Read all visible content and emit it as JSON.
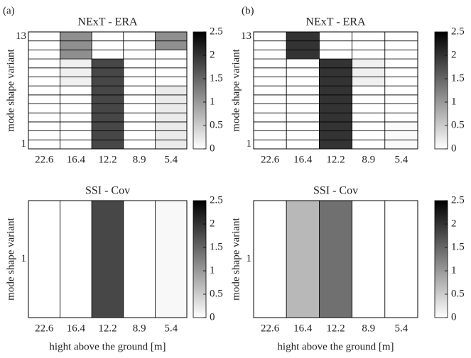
{
  "panel_labels": [
    "(a)",
    "(b)"
  ],
  "chart_data": [
    {
      "type": "heatmap",
      "title": "NExT - ERA",
      "ylabel": "mode shape variant",
      "x_categories": [
        "22.6",
        "16.4",
        "12.2",
        "8.9",
        "5.4"
      ],
      "y_categories": [
        "1",
        null,
        null,
        null,
        null,
        null,
        null,
        null,
        null,
        null,
        null,
        null,
        "13"
      ],
      "values": [
        [
          0,
          0,
          1.8,
          0,
          0.2
        ],
        [
          0,
          0,
          1.8,
          0,
          0.2
        ],
        [
          0,
          0,
          1.8,
          0,
          0.2
        ],
        [
          0,
          0,
          1.8,
          0,
          0.2
        ],
        [
          0,
          0,
          1.8,
          0,
          0.2
        ],
        [
          0,
          0,
          1.8,
          0,
          0.2
        ],
        [
          0,
          0,
          1.8,
          0,
          0.2
        ],
        [
          0,
          0.15,
          1.8,
          0,
          0
        ],
        [
          0,
          0.15,
          1.8,
          0,
          0
        ],
        [
          0,
          0.15,
          1.8,
          0,
          0
        ],
        [
          0,
          1.1,
          0,
          0,
          0
        ],
        [
          0,
          1.1,
          0,
          0,
          1.1
        ],
        [
          0,
          1.1,
          0,
          0,
          1.1
        ]
      ],
      "clim": [
        0,
        2.5
      ],
      "cticks": [
        0,
        0.5,
        1,
        1.5,
        2,
        2.5
      ],
      "colormap": [
        "#ffffff",
        "#000000"
      ]
    },
    {
      "type": "heatmap",
      "title": "NExT - ERA",
      "ylabel": "mode shape variant",
      "x_categories": [
        "22.6",
        "16.4",
        "12.2",
        "8.9",
        "5.4"
      ],
      "y_categories": [
        "1",
        null,
        null,
        null,
        null,
        null,
        null,
        null,
        null,
        null,
        null,
        null,
        "13"
      ],
      "values": [
        [
          0,
          0,
          2.0,
          0,
          0.05
        ],
        [
          0,
          0,
          2.0,
          0,
          0.05
        ],
        [
          0,
          0,
          2.0,
          0,
          0.05
        ],
        [
          0,
          0,
          2.0,
          0,
          0
        ],
        [
          0,
          0,
          2.0,
          0,
          0
        ],
        [
          0,
          0,
          2.0,
          0,
          0
        ],
        [
          0,
          0,
          2.0,
          0,
          0
        ],
        [
          0,
          0,
          2.0,
          0.15,
          0
        ],
        [
          0,
          0,
          2.0,
          0.15,
          0
        ],
        [
          0,
          0,
          2.0,
          0.15,
          0
        ],
        [
          0,
          2.0,
          0,
          0,
          0
        ],
        [
          0,
          2.0,
          0,
          0,
          0
        ],
        [
          0,
          2.0,
          0,
          0,
          0
        ]
      ],
      "clim": [
        0,
        2.5
      ],
      "cticks": [
        0,
        0.5,
        1,
        1.5,
        2,
        2.5
      ],
      "colormap": [
        "#ffffff",
        "#000000"
      ]
    },
    {
      "type": "heatmap",
      "title": "SSI - Cov",
      "ylabel": "mode shape variant",
      "xlabel": "hight above the ground [m]",
      "x_categories": [
        "22.6",
        "16.4",
        "12.2",
        "8.9",
        "5.4"
      ],
      "y_categories": [
        "1"
      ],
      "values": [
        [
          0,
          0,
          1.8,
          0,
          0.07
        ]
      ],
      "clim": [
        0,
        2.5
      ],
      "cticks": [
        0,
        0.5,
        1,
        1.5,
        2,
        2.5
      ],
      "colormap": [
        "#ffffff",
        "#000000"
      ]
    },
    {
      "type": "heatmap",
      "title": "SSI - Cov",
      "ylabel": "mode shape variant",
      "xlabel": "hight above the ground [m]",
      "x_categories": [
        "22.6",
        "16.4",
        "12.2",
        "8.9",
        "5.4"
      ],
      "y_categories": [
        "1"
      ],
      "values": [
        [
          0,
          0.7,
          1.4,
          0,
          0
        ]
      ],
      "clim": [
        0,
        2.5
      ],
      "cticks": [
        0,
        0.5,
        1,
        1.5,
        2,
        2.5
      ],
      "colormap": [
        "#ffffff",
        "#000000"
      ]
    }
  ]
}
